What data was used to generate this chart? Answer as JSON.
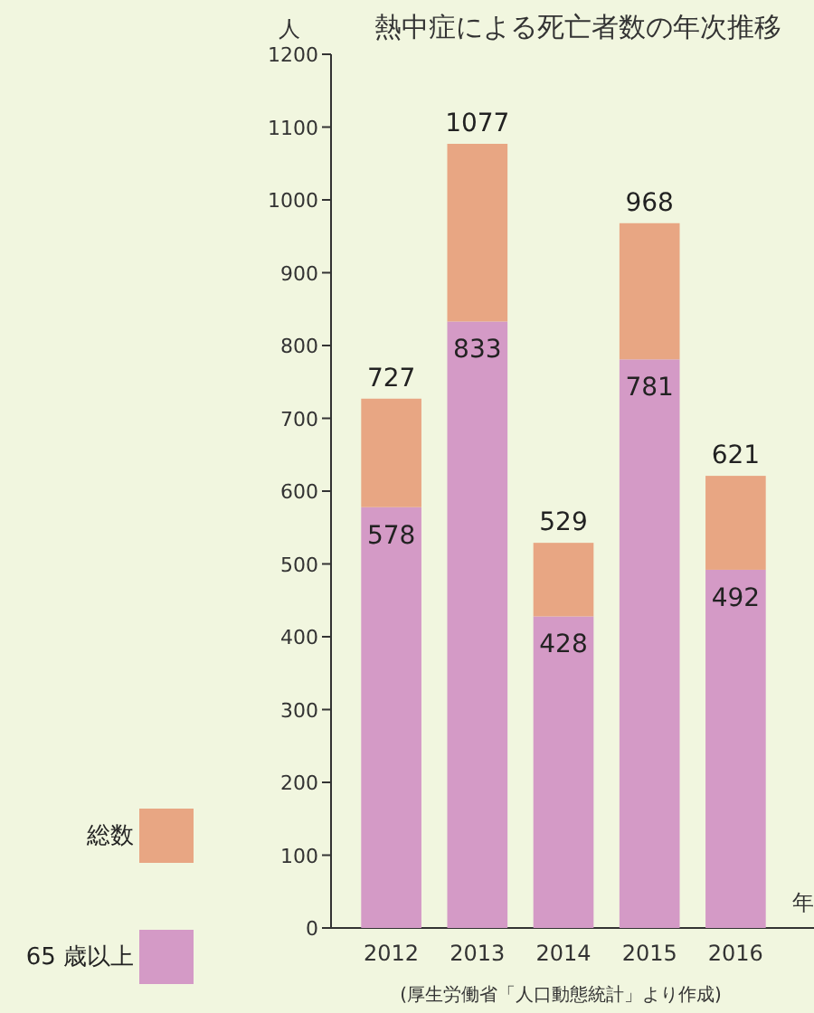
{
  "chart_data": {
    "type": "bar",
    "stacked": true,
    "title": "熱中症による死亡者数の年次推移",
    "ylabel": "人",
    "xlabel": "年",
    "categories": [
      "2012",
      "2013",
      "2014",
      "2015",
      "2016"
    ],
    "series": [
      {
        "name": "65 歳以上",
        "color": "#d49ac6",
        "values": [
          578,
          833,
          428,
          781,
          492
        ],
        "value_labels": [
          "578",
          "833",
          "428",
          "781",
          "492"
        ]
      },
      {
        "name": "総数",
        "color": "#e8a683",
        "values": [
          149,
          244,
          101,
          187,
          129
        ]
      }
    ],
    "totals": [
      "727",
      "1077",
      "529",
      "968",
      "621"
    ],
    "ylim": [
      0,
      1200
    ],
    "yticks": [
      0,
      100,
      200,
      300,
      400,
      500,
      600,
      700,
      800,
      900,
      1000,
      1100,
      1200
    ],
    "legend": "bottom left",
    "grid": false,
    "annotations": [
      "(厚生労働省「人口動態統計」より作成)"
    ]
  }
}
